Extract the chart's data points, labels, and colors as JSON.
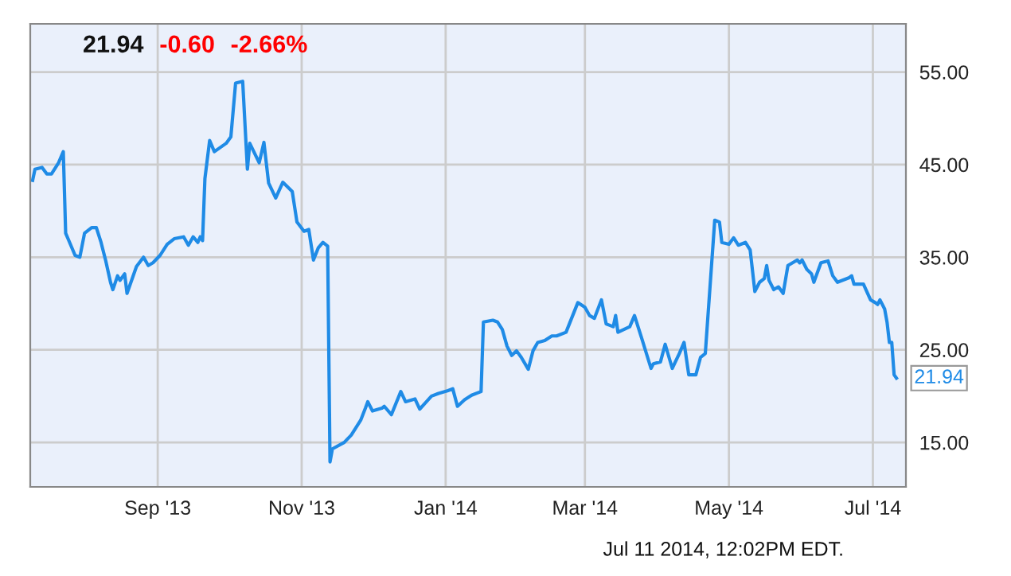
{
  "chart_data": {
    "type": "line",
    "x": [
      "2013-07-10",
      "2013-07-11",
      "2013-07-14",
      "2013-07-16",
      "2013-07-18",
      "2013-07-21",
      "2013-07-23",
      "2013-07-24",
      "2013-07-25",
      "2013-07-28",
      "2013-07-30",
      "2013-08-01",
      "2013-08-04",
      "2013-08-06",
      "2013-08-08",
      "2013-08-10",
      "2013-08-12",
      "2013-08-13",
      "2013-08-15",
      "2013-08-16",
      "2013-08-18",
      "2013-08-19",
      "2013-08-23",
      "2013-08-26",
      "2013-08-28",
      "2013-08-30",
      "2013-09-02",
      "2013-09-05",
      "2013-09-08",
      "2013-09-12",
      "2013-09-14",
      "2013-09-16",
      "2013-09-18",
      "2013-09-19",
      "2013-09-20",
      "2013-09-21",
      "2013-09-23",
      "2013-09-25",
      "2013-09-30",
      "2013-10-02",
      "2013-10-04",
      "2013-10-07",
      "2013-10-09",
      "2013-10-10",
      "2013-10-14",
      "2013-10-16",
      "2013-10-18",
      "2013-10-21",
      "2013-10-24",
      "2013-10-28",
      "2013-10-30",
      "2013-11-02",
      "2013-11-04",
      "2013-11-06",
      "2013-11-08",
      "2013-11-10",
      "2013-11-12",
      "2013-11-13",
      "2013-11-14",
      "2013-11-19",
      "2013-11-22",
      "2013-11-26",
      "2013-11-28",
      "2013-11-29",
      "2013-12-01",
      "2013-12-05",
      "2013-12-06",
      "2013-12-09",
      "2013-12-13",
      "2013-12-15",
      "2013-12-19",
      "2013-12-21",
      "2013-12-26",
      "2013-12-29",
      "2014-01-02",
      "2014-01-04",
      "2014-01-06",
      "2014-01-09",
      "2014-01-12",
      "2014-01-16",
      "2014-01-17",
      "2014-01-21",
      "2014-01-23",
      "2014-01-25",
      "2014-01-27",
      "2014-01-29",
      "2014-01-31",
      "2014-02-02",
      "2014-02-05",
      "2014-02-07",
      "2014-02-09",
      "2014-02-12",
      "2014-02-15",
      "2014-02-17",
      "2014-02-21",
      "2014-02-26",
      "2014-03-01",
      "2014-03-03",
      "2014-03-05",
      "2014-03-08",
      "2014-03-10",
      "2014-03-13",
      "2014-03-14",
      "2014-03-15",
      "2014-03-20",
      "2014-03-22",
      "2014-03-25",
      "2014-03-29",
      "2014-03-30",
      "2014-04-02",
      "2014-04-04",
      "2014-04-07",
      "2014-04-10",
      "2014-04-12",
      "2014-04-14",
      "2014-04-17",
      "2014-04-19",
      "2014-04-21",
      "2014-04-25",
      "2014-04-27",
      "2014-04-28",
      "2014-05-01",
      "2014-05-03",
      "2014-05-05",
      "2014-05-08",
      "2014-05-10",
      "2014-05-12",
      "2014-05-14",
      "2014-05-16",
      "2014-05-17",
      "2014-05-18",
      "2014-05-20",
      "2014-05-22",
      "2014-05-24",
      "2014-05-26",
      "2014-05-30",
      "2014-05-31",
      "2014-06-01",
      "2014-06-03",
      "2014-06-05",
      "2014-06-06",
      "2014-06-09",
      "2014-06-12",
      "2014-06-14",
      "2014-06-16",
      "2014-06-21",
      "2014-06-22",
      "2014-06-23",
      "2014-06-27",
      "2014-06-30",
      "2014-07-02",
      "2014-07-03",
      "2014-07-04",
      "2014-07-06",
      "2014-07-07",
      "2014-07-08",
      "2014-07-09",
      "2014-07-10",
      "2014-07-11"
    ],
    "series": [
      {
        "color": "#1f8be6",
        "values": [
          43.3,
          44.5,
          44.7,
          44,
          44,
          45.2,
          46.4,
          37.6,
          37,
          35.2,
          35,
          37.6,
          38.2,
          38.2,
          36.6,
          34.6,
          32.3,
          31.5,
          33,
          32.5,
          33.2,
          31.1,
          34,
          35,
          34.1,
          34.4,
          35.2,
          36.4,
          37,
          37.2,
          36.3,
          37.2,
          36.6,
          37.2,
          36.8,
          43.5,
          47.6,
          46.4,
          47.3,
          48,
          53.8,
          54,
          44.5,
          47.3,
          45.2,
          47.4,
          43,
          41.4,
          43.1,
          42.1,
          38.8,
          37.8,
          38,
          34.7,
          36,
          36.6,
          36.2,
          12.9,
          14.3,
          15,
          15.8,
          17.4,
          18.7,
          19.4,
          18.4,
          18.7,
          18.9,
          18,
          20.5,
          19.4,
          19.7,
          18.6,
          20,
          20.3,
          20.6,
          20.8,
          18.9,
          19.6,
          20.1,
          20.5,
          28,
          28.2,
          28,
          27.2,
          25.4,
          24.4,
          24.9,
          24.2,
          22.9,
          24.9,
          25.8,
          26,
          26.5,
          26.5,
          26.9,
          30.1,
          29.6,
          28.7,
          28.4,
          30.4,
          27.8,
          27.5,
          28.7,
          26.9,
          27.5,
          28.7,
          26.3,
          23,
          23.5,
          23.7,
          25.6,
          23,
          24.6,
          25.8,
          22.3,
          22.3,
          24.2,
          24.6,
          39,
          38.8,
          36.6,
          36.4,
          37.1,
          36.3,
          36.6,
          35.8,
          31.3,
          32.3,
          32.7,
          34.1,
          32.5,
          31.5,
          31.8,
          31.1,
          34.1,
          34.7,
          34.4,
          34.7,
          33.7,
          33.2,
          32.3,
          34.4,
          34.6,
          33,
          32.3,
          32.8,
          33,
          32.1,
          32.1,
          30.4,
          30.1,
          29.9,
          30.4,
          29.4,
          28,
          25.8,
          25.8,
          22.3,
          21.94
        ]
      }
    ],
    "xlim": [
      "2013-07-09",
      "2014-07-15"
    ],
    "xticks": [
      {
        "value": "2013-09-01",
        "label": "Sep '13"
      },
      {
        "value": "2013-11-01",
        "label": "Nov '13"
      },
      {
        "value": "2014-01-01",
        "label": "Jan '14"
      },
      {
        "value": "2014-03-01",
        "label": "Mar '14"
      },
      {
        "value": "2014-05-01",
        "label": "May '14"
      },
      {
        "value": "2014-07-01",
        "label": "Jul '14"
      }
    ],
    "ylim": [
      10.2,
      60.2
    ],
    "yticks": [
      {
        "value": 15,
        "label": "15.00"
      },
      {
        "value": 25,
        "label": "25.00"
      },
      {
        "value": 35,
        "label": "35.00"
      },
      {
        "value": 45,
        "label": "45.00"
      },
      {
        "value": 55,
        "label": "55.00"
      }
    ],
    "grid": true,
    "marker": "none",
    "line_style": "solid",
    "annotations": [
      "21.94",
      "-0.60",
      "-2.66%",
      "Jul 11 2014, 12:02PM EDT.",
      {
        "text": "21.94",
        "x": "2014-07-11",
        "y": 21.94
      }
    ]
  }
}
